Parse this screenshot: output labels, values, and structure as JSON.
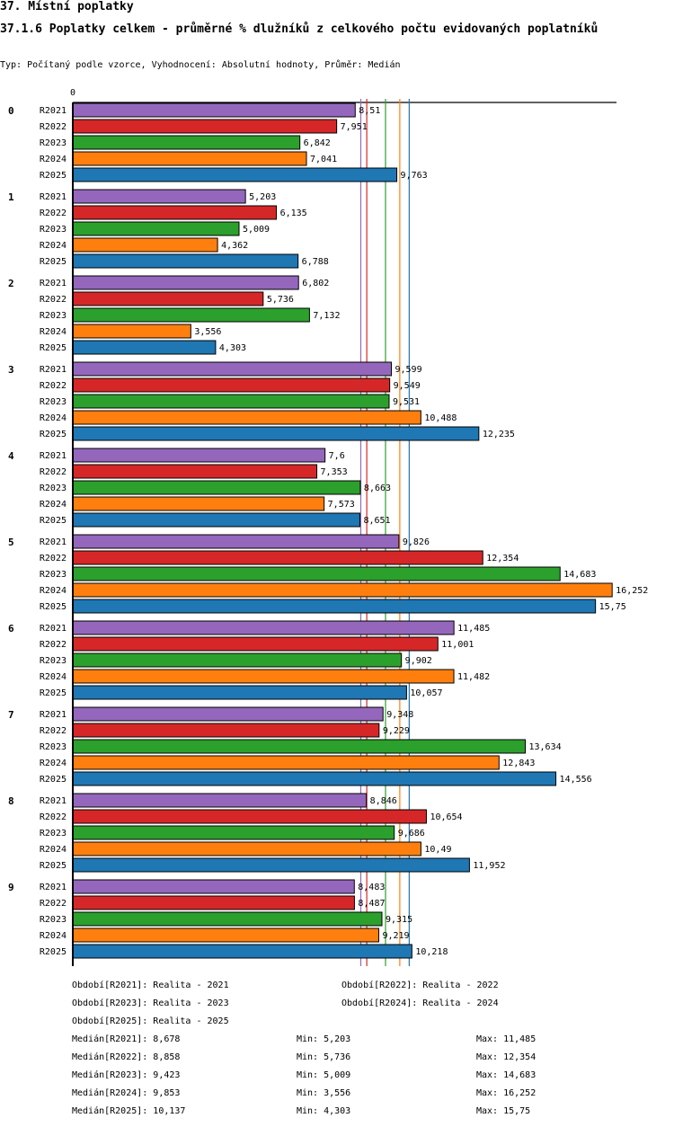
{
  "header": {
    "title": "37. Místní poplatky",
    "subtitle": "37.1.6 Poplatky celkem - průměrné % dlužníků z celkového počtu evidovaných poplatníků",
    "info": "Typ: Počítaný podle vzorce, Vyhodnocení: Absolutní hodnoty, Průměr: Medián"
  },
  "chart_data": {
    "type": "bar",
    "orientation": "horizontal",
    "title": "37.1.6 Poplatky celkem - průměrné % dlužníků z celkového počtu evidovaných poplatníků",
    "xlabel": "",
    "ylabel": "",
    "x_tick_labels": [
      "0"
    ],
    "xlim": [
      0,
      16.5
    ],
    "grid": false,
    "categories": [
      "0",
      "1",
      "2",
      "3",
      "4",
      "5",
      "6",
      "7",
      "8",
      "9"
    ],
    "series": [
      {
        "name": "R2021",
        "color": "#9467bd",
        "values": [
          8.51,
          5.203,
          6.802,
          9.599,
          7.6,
          9.826,
          11.485,
          9.348,
          8.846,
          8.483
        ],
        "labels": [
          "8,51",
          "5,203",
          "6,802",
          "9,599",
          "7,6",
          "9,826",
          "11,485",
          "9,348",
          "8,846",
          "8,483"
        ]
      },
      {
        "name": "R2022",
        "color": "#d62728",
        "values": [
          7.951,
          6.135,
          5.736,
          9.549,
          7.353,
          12.354,
          11.001,
          9.229,
          10.654,
          8.487
        ],
        "labels": [
          "7,951",
          "6,135",
          "5,736",
          "9,549",
          "7,353",
          "12,354",
          "11,001",
          "9,229",
          "10,654",
          "8,487"
        ]
      },
      {
        "name": "R2023",
        "color": "#2ca02c",
        "values": [
          6.842,
          5.009,
          7.132,
          9.531,
          8.663,
          14.683,
          9.902,
          13.634,
          9.686,
          9.315
        ],
        "labels": [
          "6,842",
          "5,009",
          "7,132",
          "9,531",
          "8,663",
          "14,683",
          "9,902",
          "13,634",
          "9,686",
          "9,315"
        ]
      },
      {
        "name": "R2024",
        "color": "#ff7f0e",
        "values": [
          7.041,
          4.362,
          3.556,
          10.488,
          7.573,
          16.252,
          11.482,
          12.843,
          10.49,
          9.219
        ],
        "labels": [
          "7,041",
          "4,362",
          "3,556",
          "10,488",
          "7,573",
          "16,252",
          "11,482",
          "12,843",
          "10,49",
          "9,219"
        ]
      },
      {
        "name": "R2025",
        "color": "#1f77b4",
        "values": [
          9.763,
          6.788,
          4.303,
          12.235,
          8.651,
          15.75,
          10.057,
          14.556,
          11.952,
          10.218
        ],
        "labels": [
          "9,763",
          "6,788",
          "4,303",
          "12,235",
          "8,651",
          "15,75",
          "10,057",
          "14,556",
          "11,952",
          "10,218"
        ]
      }
    ],
    "median_lines": [
      {
        "series": "R2021",
        "value": 8.678,
        "color": "#9467bd"
      },
      {
        "series": "R2022",
        "value": 8.858,
        "color": "#d62728"
      },
      {
        "series": "R2023",
        "value": 9.423,
        "color": "#2ca02c"
      },
      {
        "series": "R2024",
        "value": 9.853,
        "color": "#ff7f0e"
      },
      {
        "series": "R2025",
        "value": 10.137,
        "color": "#1f77b4"
      }
    ]
  },
  "legend": {
    "periods": [
      "Období[R2021]: Realita - 2021",
      "Období[R2022]: Realita - 2022",
      "Období[R2023]: Realita - 2023",
      "Období[R2024]: Realita - 2024",
      "Období[R2025]: Realita - 2025"
    ],
    "stats": [
      {
        "median": "Medián[R2021]: 8,678",
        "min": "Min: 5,203",
        "max": "Max: 11,485"
      },
      {
        "median": "Medián[R2022]: 8,858",
        "min": "Min: 5,736",
        "max": "Max: 12,354"
      },
      {
        "median": "Medián[R2023]: 9,423",
        "min": "Min: 5,009",
        "max": "Max: 14,683"
      },
      {
        "median": "Medián[R2024]: 9,853",
        "min": "Min: 3,556",
        "max": "Max: 16,252"
      },
      {
        "median": "Medián[R2025]: 10,137",
        "min": "Min: 4,303",
        "max": "Max: 15,75"
      }
    ]
  }
}
